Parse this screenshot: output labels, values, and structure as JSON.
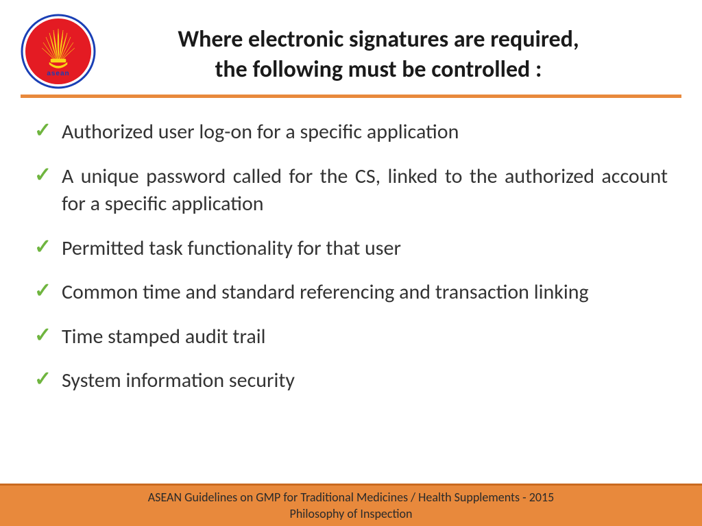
{
  "title_line1": "Where electronic signatures are required,",
  "title_line2": "the following must be controlled :",
  "divider_color": "#e8893c",
  "check_color": "#6fb53f",
  "bullets": [
    {
      "text": "Authorized user log-on for a specific application",
      "justify": false
    },
    {
      "text": "A unique password called for the CS, linked to the authorized account for a specific application",
      "justify": true
    },
    {
      "text": "Permitted task functionality for that user",
      "justify": false
    },
    {
      "text": "Common time and standard referencing and transaction linking",
      "justify": false
    },
    {
      "text": "Time stamped audit trail",
      "justify": false
    },
    {
      "text": "System information security",
      "justify": false
    }
  ],
  "footer": {
    "bg_color": "#e8893c",
    "border_top_color": "#c96a20",
    "line1": "ASEAN Guidelines on GMP for Traditional Medicines  / Health Supplements - 2015",
    "line2": "Philosophy of Inspection"
  },
  "logo": {
    "outer_ring": "#1a3fb5",
    "inner_bg": "#e41b23",
    "sheaf_color": "#f9d616",
    "label": "asean",
    "label_color": "#1a3fb5"
  }
}
